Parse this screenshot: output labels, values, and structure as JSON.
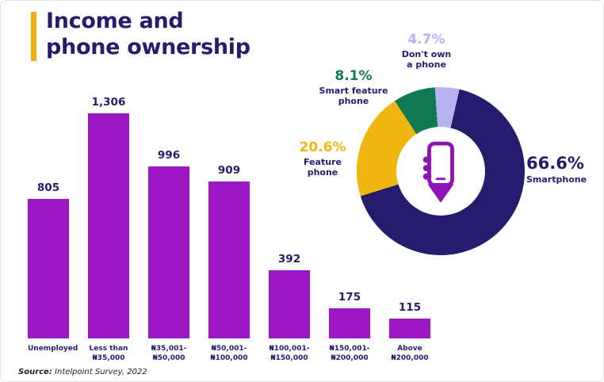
{
  "title": {
    "line1": "Income and",
    "line2": "phone ownership"
  },
  "source": {
    "prefix": "Source:",
    "text": "Intelpoint Survey, 2022"
  },
  "colors": {
    "navy": "#241d6d",
    "bar_purple": "#9D17C5",
    "gold": "#F0B50F",
    "green": "#0E7B52",
    "lavender": "#B7B2F0",
    "accent_gold": "#EFAF0D"
  },
  "chart_data": [
    {
      "type": "bar",
      "title": "",
      "xlabel": "",
      "ylabel": "",
      "categories": [
        "Unemployed",
        "Less than\n₦35,000",
        "₦35,001-\n₦50,000",
        "₦50,001-\n₦100,000",
        "₦100,001-\n₦150,000",
        "₦150,001-\n₦200,000",
        "Above\n₦200,000"
      ],
      "values": [
        805,
        1306,
        996,
        909,
        392,
        175,
        115
      ],
      "value_labels": [
        "805",
        "1,306",
        "996",
        "909",
        "392",
        "175",
        "115"
      ],
      "ylim": [
        0,
        1306
      ],
      "grid": false,
      "bar_color": "#9D17C5"
    },
    {
      "type": "pie",
      "donut": true,
      "title": "",
      "start_angle_deg": -4,
      "center_icon": "hand-holding-phone-icon",
      "slices": [
        {
          "label": "Don't own a phone",
          "label_display": "Don't own\na phone",
          "pct": 4.7,
          "pct_label": "4.7%",
          "color": "#B7B2F0"
        },
        {
          "label": "Smartphone",
          "label_display": "Smartphone",
          "pct": 66.6,
          "pct_label": "66.6%",
          "color": "#241d6d"
        },
        {
          "label": "Feature phone",
          "label_display": "Feature\nphone",
          "pct": 20.6,
          "pct_label": "20.6%",
          "color": "#F0B50F"
        },
        {
          "label": "Smart feature phone",
          "label_display": "Smart feature\nphone",
          "pct": 8.1,
          "pct_label": "8.1%",
          "color": "#0E7B52"
        }
      ]
    }
  ]
}
